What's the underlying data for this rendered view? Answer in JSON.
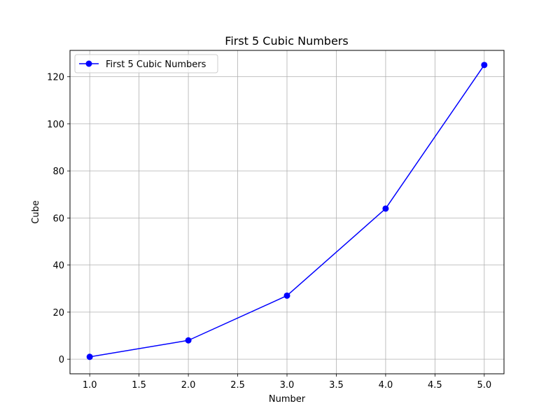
{
  "chart_data": {
    "type": "line",
    "title": "First 5 Cubic Numbers",
    "xlabel": "Number",
    "ylabel": "Cube",
    "xlim": [
      0.8,
      5.2
    ],
    "ylim": [
      -6.2,
      131.2
    ],
    "x_ticks": [
      1.0,
      1.5,
      2.0,
      2.5,
      3.0,
      3.5,
      4.0,
      4.5,
      5.0
    ],
    "x_tick_labels": [
      "1.0",
      "1.5",
      "2.0",
      "2.5",
      "3.0",
      "3.5",
      "4.0",
      "4.5",
      "5.0"
    ],
    "y_ticks": [
      0,
      20,
      40,
      60,
      80,
      100,
      120
    ],
    "y_tick_labels": [
      "0",
      "20",
      "40",
      "60",
      "80",
      "100",
      "120"
    ],
    "grid": true,
    "legend_position": "top-left",
    "series": [
      {
        "name": "First 5 Cubic Numbers",
        "color": "#0000ff",
        "marker": "circle",
        "x": [
          1,
          2,
          3,
          4,
          5
        ],
        "y": [
          1,
          8,
          27,
          64,
          125
        ]
      }
    ]
  }
}
